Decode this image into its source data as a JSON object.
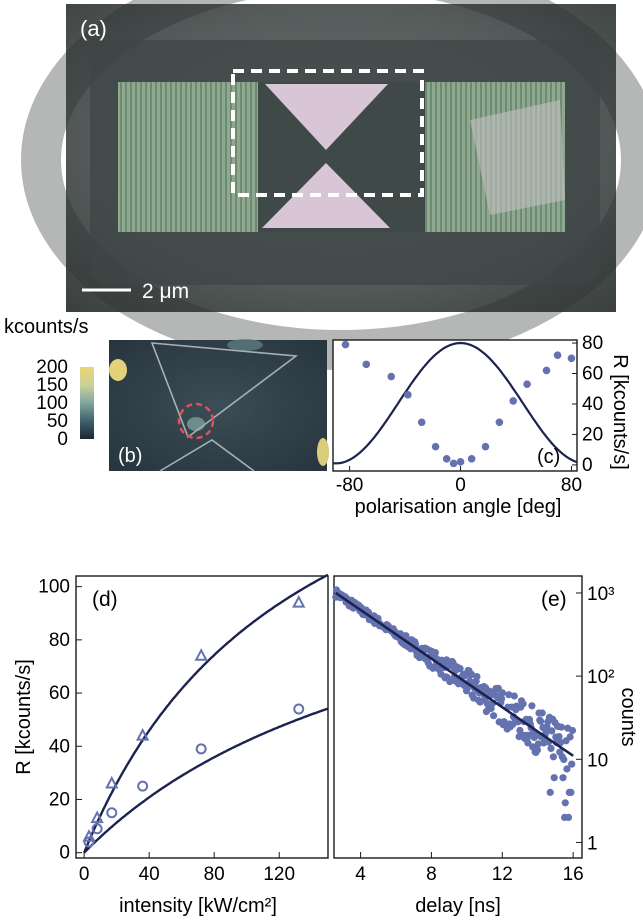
{
  "panel_a": {
    "label": "(a)",
    "scalebar": "2 μm",
    "colors": {
      "background": "#4f5555",
      "stripes": "#7f9a82",
      "metal": "#d6c6d4"
    }
  },
  "panel_b": {
    "label": "(b)",
    "colorbar_unit": "kcounts/s",
    "colorbar_ticks": [
      "200",
      "150",
      "100",
      "50",
      "0"
    ],
    "colors": {
      "low": "#1f2b33",
      "high": "#e8d070",
      "marker": "#e0505a"
    }
  },
  "chart_data": [
    {
      "panel": "(c)",
      "type": "scatter",
      "xlabel": "polarisation angle [deg]",
      "ylabel": "R [kcounts/s]",
      "xlim": [
        -92,
        84
      ],
      "ylim": [
        -4,
        82
      ],
      "xticks": [
        -80,
        0,
        80
      ],
      "yticks": [
        0,
        20,
        40,
        60,
        80
      ],
      "points": {
        "x": [
          -83,
          -68,
          -50,
          -38,
          -28,
          -18,
          -10,
          -5,
          0,
          8,
          18,
          28,
          38,
          48,
          62,
          70,
          80
        ],
        "y": [
          79,
          66,
          58,
          46,
          28,
          12,
          4,
          1,
          2,
          4,
          12,
          28,
          42,
          53,
          62,
          72,
          70
        ]
      },
      "fit": "cos2",
      "colors": {
        "points": "#6472b0",
        "fit": "#1c2350"
      }
    },
    {
      "panel": "(d)",
      "type": "scatter",
      "xlabel": "intensity [kW/cm²]",
      "ylabel": "R [kcounts/s]",
      "xlim": [
        -5,
        150
      ],
      "ylim": [
        -2,
        104
      ],
      "xticks": [
        0,
        40,
        80,
        120
      ],
      "yticks": [
        0,
        20,
        40,
        60,
        80,
        100
      ],
      "series": [
        {
          "marker": "triangle",
          "x": [
            3,
            8,
            17,
            36,
            72,
            132
          ],
          "y": [
            6,
            13,
            26,
            44,
            74,
            94
          ]
        },
        {
          "marker": "circle",
          "x": [
            3,
            8,
            17,
            36,
            72,
            132
          ],
          "y": [
            4,
            9,
            15,
            25,
            39,
            54
          ]
        }
      ],
      "colors": {
        "points": "#6472b0",
        "fit": "#1c2350"
      }
    },
    {
      "panel": "(e)",
      "type": "scatter",
      "xlabel": "delay [ns]",
      "ylabel": "counts",
      "xlim": [
        2.5,
        16.5
      ],
      "ylim": [
        0.65,
        1600
      ],
      "yscale": "log",
      "xticks": [
        4,
        8,
        12,
        16
      ],
      "yticks": [
        "1",
        "10",
        "10²",
        "10³"
      ],
      "fit": {
        "type": "exponential",
        "x": [
          2.6,
          16
        ],
        "y": [
          1000,
          11
        ]
      },
      "colors": {
        "points": "#6472b0",
        "fit": "#1c2350"
      }
    }
  ]
}
